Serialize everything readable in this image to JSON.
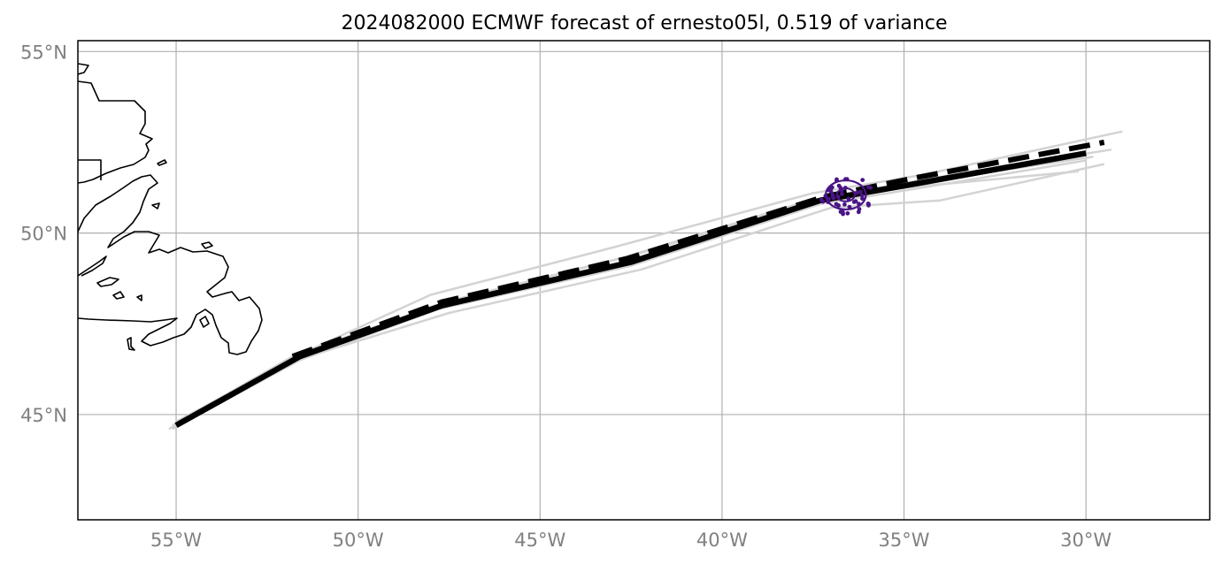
{
  "title": "2024082000 ECMWF forecast of ernesto05l, 0.519 of variance",
  "map": {
    "lon_range": [
      -57.7,
      -26.6
    ],
    "lat_range": [
      42.1,
      55.3
    ],
    "gridlines": true,
    "x_ticks": [
      {
        "value": -55,
        "label": "55°W"
      },
      {
        "value": -50,
        "label": "50°W"
      },
      {
        "value": -45,
        "label": "45°W"
      },
      {
        "value": -40,
        "label": "40°W"
      },
      {
        "value": -35,
        "label": "35°W"
      },
      {
        "value": -30,
        "label": "30°W"
      }
    ],
    "y_ticks": [
      {
        "value": 45,
        "label": "45°N"
      },
      {
        "value": 50,
        "label": "50°N"
      },
      {
        "value": 55,
        "label": "55°N"
      }
    ],
    "colors": {
      "ensemble": "#d3d3d3",
      "mean_track": "#000000",
      "points": "#4a1486",
      "grid": "#b0b0b0",
      "tick_text": "#808080",
      "coast": "#000000"
    }
  },
  "chart_data": {
    "type": "line",
    "x_unit": "longitude (degrees, negative = W)",
    "y_unit": "latitude (degrees N)",
    "series": [
      {
        "style": "solid",
        "points": [
          [
            -55,
            44.7
          ],
          [
            -51.6,
            46.6
          ],
          [
            -47.7,
            48.0
          ],
          [
            -42.5,
            49.2
          ],
          [
            -37.3,
            50.9
          ],
          [
            -35.0,
            51.3
          ],
          [
            -30,
            52.2
          ]
        ]
      },
      {
        "style": "dashed",
        "points": [
          [
            -51.8,
            46.6
          ],
          [
            -47.7,
            48.1
          ],
          [
            -42.6,
            49.3
          ],
          [
            -37.2,
            51.0
          ],
          [
            -34.8,
            51.5
          ],
          [
            -29.5,
            52.5
          ]
        ]
      }
    ],
    "ensemble": [
      [
        [
          -55.1,
          44.6
        ],
        [
          -51.6,
          46.5
        ],
        [
          -47.8,
          47.9
        ],
        [
          -42.5,
          49.1
        ],
        [
          -37.3,
          50.8
        ],
        [
          -34.8,
          51.2
        ],
        [
          -30.0,
          52.0
        ]
      ],
      [
        [
          -55.0,
          44.8
        ],
        [
          -51.5,
          46.7
        ],
        [
          -48.0,
          48.3
        ],
        [
          -43.0,
          49.6
        ],
        [
          -37.5,
          51.1
        ],
        [
          -34.5,
          51.6
        ],
        [
          -29.0,
          52.8
        ]
      ],
      [
        [
          -55.2,
          44.6
        ],
        [
          -51.7,
          46.5
        ],
        [
          -47.5,
          47.8
        ],
        [
          -42.2,
          49.0
        ],
        [
          -37.0,
          50.7
        ],
        [
          -34.0,
          50.9
        ],
        [
          -29.5,
          51.9
        ]
      ],
      [
        [
          -55.0,
          44.7
        ],
        [
          -51.4,
          46.7
        ],
        [
          -47.6,
          48.1
        ],
        [
          -42.8,
          49.3
        ],
        [
          -37.6,
          50.9
        ],
        [
          -35.5,
          51.2
        ],
        [
          -30.2,
          51.7
        ]
      ],
      [
        [
          -55.1,
          44.7
        ],
        [
          -51.8,
          46.6
        ],
        [
          -47.9,
          48.0
        ],
        [
          -42.4,
          49.4
        ],
        [
          -37.1,
          51.0
        ],
        [
          -34.3,
          51.5
        ],
        [
          -29.3,
          52.3
        ]
      ],
      [
        [
          -55.0,
          44.7
        ],
        [
          -51.6,
          46.6
        ],
        [
          -47.7,
          48.0
        ],
        [
          -42.6,
          49.2
        ],
        [
          -37.4,
          50.9
        ],
        [
          -35.2,
          51.3
        ],
        [
          -29.8,
          52.1
        ]
      ]
    ],
    "cluster": {
      "center": [
        -36.6,
        51.05
      ],
      "radius_lon": 0.55,
      "radius_lat": 0.4,
      "count": 50
    }
  }
}
